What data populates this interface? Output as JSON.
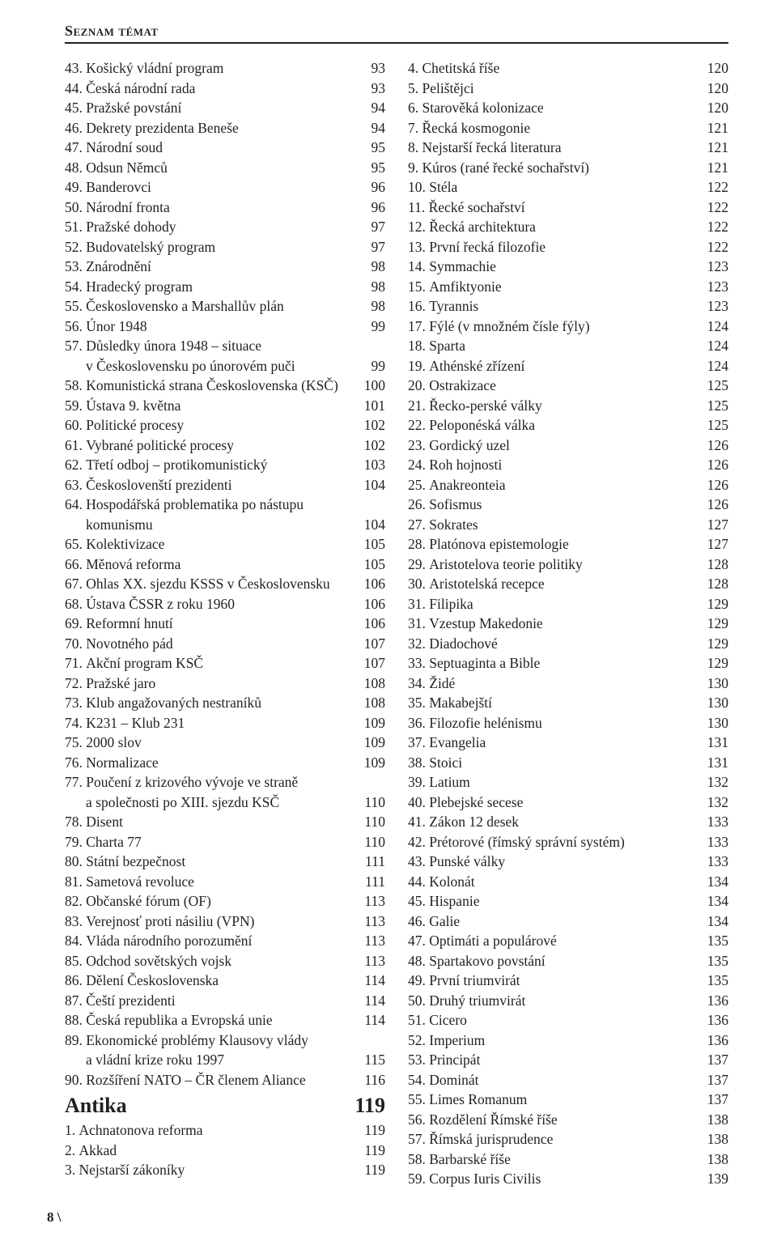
{
  "header": "Seznam témat",
  "footer": "8 \\",
  "column_left": [
    {
      "n": "43.",
      "t": "Košický vládní program",
      "p": "93"
    },
    {
      "n": "44.",
      "t": "Česká národní rada",
      "p": "93"
    },
    {
      "n": "45.",
      "t": "Pražské povstání",
      "p": "94"
    },
    {
      "n": "46.",
      "t": "Dekrety prezidenta Beneše",
      "p": "94"
    },
    {
      "n": "47.",
      "t": "Národní soud",
      "p": "95"
    },
    {
      "n": "48.",
      "t": "Odsun Němců",
      "p": "95"
    },
    {
      "n": "49.",
      "t": "Banderovci",
      "p": "96"
    },
    {
      "n": "50.",
      "t": "Národní fronta",
      "p": "96"
    },
    {
      "n": "51.",
      "t": "Pražské dohody",
      "p": "97"
    },
    {
      "n": "52.",
      "t": "Budovatelský program",
      "p": "97"
    },
    {
      "n": "53.",
      "t": "Znárodnění",
      "p": "98"
    },
    {
      "n": "54.",
      "t": "Hradecký program",
      "p": "98"
    },
    {
      "n": "55.",
      "t": "Československo a Marshallův plán",
      "p": "98"
    },
    {
      "n": "56.",
      "t": "Únor 1948",
      "p": "99"
    },
    {
      "n": "57.",
      "t": "Důsledky února 1948 – situace",
      "p": ""
    },
    {
      "indent": true,
      "t": "v Československu po únorovém puči",
      "p": "99"
    },
    {
      "n": "58.",
      "t": "Komunistická strana Československa (KSČ)",
      "p": "100"
    },
    {
      "n": "59.",
      "t": "Ústava 9. května",
      "p": "101"
    },
    {
      "n": "60.",
      "t": "Politické procesy",
      "p": "102"
    },
    {
      "n": "61.",
      "t": "Vybrané politické procesy",
      "p": "102"
    },
    {
      "n": "62.",
      "t": "Třetí odboj – protikomunistický",
      "p": "103"
    },
    {
      "n": "63.",
      "t": "Českoslovenští prezidenti",
      "p": "104"
    },
    {
      "n": "64.",
      "t": "Hospodářská problematika po nástupu",
      "p": ""
    },
    {
      "indent": true,
      "t": "komunismu",
      "p": "104"
    },
    {
      "n": "65.",
      "t": "Kolektivizace",
      "p": "105"
    },
    {
      "n": "66.",
      "t": "Měnová reforma",
      "p": "105"
    },
    {
      "n": "67.",
      "t": "Ohlas XX. sjezdu KSSS v Československu",
      "p": "106"
    },
    {
      "n": "68.",
      "t": "Ústava ČSSR z roku 1960",
      "p": "106"
    },
    {
      "n": "69.",
      "t": "Reformní hnutí",
      "p": "106"
    },
    {
      "n": "70.",
      "t": "Novotného pád",
      "p": "107"
    },
    {
      "n": "71.",
      "t": "Akční program KSČ",
      "p": "107"
    },
    {
      "n": "72.",
      "t": "Pražské jaro",
      "p": "108"
    },
    {
      "n": "73.",
      "t": "Klub angažovaných nestraníků",
      "p": "108"
    },
    {
      "n": "74.",
      "t": "K231 – Klub 231",
      "p": "109"
    },
    {
      "n": "75.",
      "t": "2000 slov",
      "p": "109"
    },
    {
      "n": "76.",
      "t": "Normalizace",
      "p": "109"
    },
    {
      "n": "77.",
      "t": "Poučení z krizového vývoje ve straně",
      "p": ""
    },
    {
      "indent": true,
      "t": "a společnosti po XIII. sjezdu KSČ",
      "p": "110"
    },
    {
      "n": "78.",
      "t": "Disent",
      "p": "110"
    },
    {
      "n": "79.",
      "t": "Charta 77",
      "p": "110"
    },
    {
      "n": "80.",
      "t": "Státní bezpečnost",
      "p": "111"
    },
    {
      "n": "81.",
      "t": "Sametová revoluce",
      "p": "111"
    },
    {
      "n": "82.",
      "t": "Občanské fórum (OF)",
      "p": "113"
    },
    {
      "n": "83.",
      "t": "Verejnosť proti násiliu (VPN)",
      "p": "113"
    },
    {
      "n": "84.",
      "t": "Vláda národního porozumění",
      "p": "113"
    },
    {
      "n": "85.",
      "t": "Odchod sovětských vojsk",
      "p": "113"
    },
    {
      "n": "86.",
      "t": "Dělení Československa",
      "p": "114"
    },
    {
      "n": "87.",
      "t": "Čeští prezidenti",
      "p": "114"
    },
    {
      "n": "88.",
      "t": "Česká republika a Evropská unie",
      "p": "114"
    },
    {
      "n": "89.",
      "t": "Ekonomické problémy Klausovy vlády",
      "p": ""
    },
    {
      "indent": true,
      "t": "a vládní krize roku 1997",
      "p": "115"
    },
    {
      "n": "90.",
      "t": "Rozšíření NATO – ČR členem Aliance",
      "p": "116"
    },
    {
      "category": true,
      "t": "Antika",
      "p": "119"
    },
    {
      "n": "1.",
      "t": "Achnatonova reforma",
      "p": "119"
    },
    {
      "n": "2.",
      "t": "Akkad",
      "p": "119"
    },
    {
      "n": "3.",
      "t": "Nejstarší zákoníky",
      "p": "119"
    }
  ],
  "column_right": [
    {
      "n": "4.",
      "t": "Chetitská říše",
      "p": "120"
    },
    {
      "n": "5.",
      "t": "Pelištějci",
      "p": "120"
    },
    {
      "n": "6.",
      "t": "Starověká kolonizace",
      "p": "120"
    },
    {
      "n": "7.",
      "t": "Řecká kosmogonie",
      "p": "121"
    },
    {
      "n": "8.",
      "t": "Nejstarší řecká literatura",
      "p": "121"
    },
    {
      "n": "9.",
      "t": "Kúros (rané řecké sochařství)",
      "p": "121"
    },
    {
      "n": "10.",
      "t": "Stéla",
      "p": "122"
    },
    {
      "n": "11.",
      "t": "Řecké sochařství",
      "p": "122"
    },
    {
      "n": "12.",
      "t": "Řecká architektura",
      "p": "122"
    },
    {
      "n": "13.",
      "t": "První řecká filozofie",
      "p": "122"
    },
    {
      "n": "14.",
      "t": "Symmachie",
      "p": "123"
    },
    {
      "n": "15.",
      "t": "Amfiktyonie",
      "p": "123"
    },
    {
      "n": "16.",
      "t": "Tyrannis",
      "p": "123"
    },
    {
      "n": "17.",
      "t": "Fýlé (v množném čísle fýly)",
      "p": "124"
    },
    {
      "n": "18.",
      "t": "Sparta",
      "p": "124"
    },
    {
      "n": "19.",
      "t": "Athénské zřízení",
      "p": "124"
    },
    {
      "n": "20.",
      "t": "Ostrakizace",
      "p": "125"
    },
    {
      "n": "21.",
      "t": "Řecko-perské války",
      "p": "125"
    },
    {
      "n": "22.",
      "t": "Peloponéská válka",
      "p": "125"
    },
    {
      "n": "23.",
      "t": "Gordický uzel",
      "p": "126"
    },
    {
      "n": "24.",
      "t": "Roh hojnosti",
      "p": "126"
    },
    {
      "n": "25.",
      "t": "Anakreonteia",
      "p": "126"
    },
    {
      "n": "26.",
      "t": "Sofismus",
      "p": "126"
    },
    {
      "n": "27.",
      "t": "Sokrates",
      "p": "127"
    },
    {
      "n": "28.",
      "t": "Platónova epistemologie",
      "p": "127"
    },
    {
      "n": "29.",
      "t": "Aristotelova teorie politiky",
      "p": "128"
    },
    {
      "n": "30.",
      "t": "Aristotelská recepce",
      "p": "128"
    },
    {
      "n": "31.",
      "t": "Filipika",
      "p": "129"
    },
    {
      "n": "31.",
      "t": "Vzestup Makedonie",
      "p": "129"
    },
    {
      "n": "32.",
      "t": "Diadochové",
      "p": "129"
    },
    {
      "n": "33.",
      "t": "Septuaginta a Bible",
      "p": "129"
    },
    {
      "n": "34.",
      "t": "Židé",
      "p": "130"
    },
    {
      "n": "35.",
      "t": "Makabejští",
      "p": "130"
    },
    {
      "n": "36.",
      "t": "Filozofie helénismu",
      "p": "130"
    },
    {
      "n": "37.",
      "t": "Evangelia",
      "p": "131"
    },
    {
      "n": "38.",
      "t": "Stoici",
      "p": "131"
    },
    {
      "n": "39.",
      "t": "Latium",
      "p": "132"
    },
    {
      "n": "40.",
      "t": "Plebejské secese",
      "p": "132"
    },
    {
      "n": "41.",
      "t": "Zákon 12 desek",
      "p": "133"
    },
    {
      "n": "42.",
      "t": "Prétorové (římský správní systém)",
      "p": "133"
    },
    {
      "n": "43.",
      "t": "Punské války",
      "p": "133"
    },
    {
      "n": "44.",
      "t": "Kolonát",
      "p": "134"
    },
    {
      "n": "45.",
      "t": "Hispanie",
      "p": "134"
    },
    {
      "n": "46.",
      "t": "Galie",
      "p": "134"
    },
    {
      "n": "47.",
      "t": "Optimáti a populárové",
      "p": "135"
    },
    {
      "n": "48.",
      "t": "Spartakovo povstání",
      "p": "135"
    },
    {
      "n": "49.",
      "t": "První triumvirát",
      "p": "135"
    },
    {
      "n": "50.",
      "t": "Druhý triumvirát",
      "p": "136"
    },
    {
      "n": "51.",
      "t": "Cicero",
      "p": "136"
    },
    {
      "n": "52.",
      "t": "Imperium",
      "p": "136"
    },
    {
      "n": "53.",
      "t": "Principát",
      "p": "137"
    },
    {
      "n": "54.",
      "t": "Dominát",
      "p": "137"
    },
    {
      "n": "55.",
      "t": "Limes Romanum",
      "p": "137"
    },
    {
      "n": "56.",
      "t": "Rozdělení Římské říše",
      "p": "138"
    },
    {
      "n": "57.",
      "t": "Římská jurisprudence",
      "p": "138"
    },
    {
      "n": "58.",
      "t": "Barbarské říše",
      "p": "138"
    },
    {
      "n": "59.",
      "t": "Corpus Iuris Civilis",
      "p": "139"
    }
  ]
}
